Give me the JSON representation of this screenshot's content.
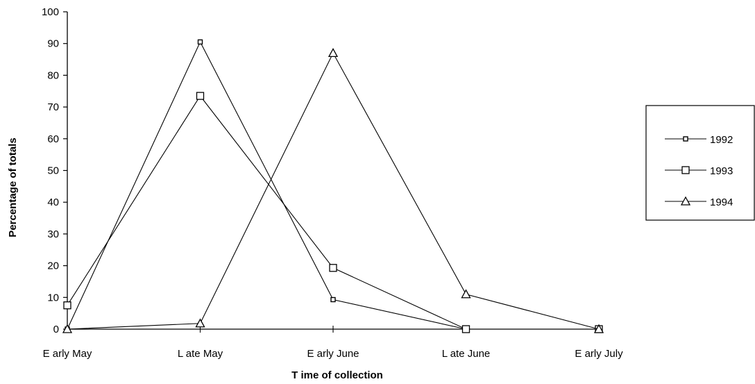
{
  "chart_data": {
    "type": "line",
    "title": "",
    "xlabel": "T ime of collection",
    "ylabel": "Percentage of totals",
    "categories": [
      "E arly May",
      "L ate May",
      "E arly June",
      "L ate June",
      "E arly July"
    ],
    "ylim": [
      0,
      100
    ],
    "yticks": [
      0,
      10,
      20,
      30,
      40,
      50,
      60,
      70,
      80,
      90,
      100
    ],
    "grid": false,
    "legend_position": "right",
    "series": [
      {
        "name": "1992",
        "marker": "small-square",
        "values": [
          0,
          90.5,
          9.3,
          0,
          0
        ]
      },
      {
        "name": "1993",
        "marker": "square",
        "values": [
          7.5,
          73.5,
          19.3,
          0,
          0
        ]
      },
      {
        "name": "1994",
        "marker": "triangle",
        "values": [
          0,
          1.8,
          87,
          11,
          0
        ]
      }
    ]
  }
}
